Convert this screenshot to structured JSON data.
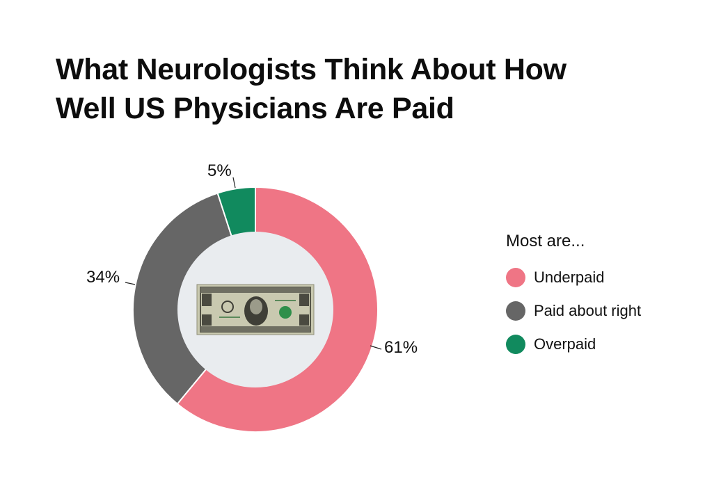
{
  "title": "What Neurologists Think About How Well US Physicians Are Paid",
  "title_lines": [
    "What Neurologists Think About How",
    "Well US Physicians Are Paid"
  ],
  "center_image": "one-dollar-bill",
  "legend": {
    "title": "Most are...",
    "items": [
      {
        "label": "Underpaid",
        "color": "#EF7585"
      },
      {
        "label": "Paid about right",
        "color": "#666666"
      },
      {
        "label": "Overpaid",
        "color": "#118A5E"
      }
    ]
  },
  "labels": {
    "underpaid": "61%",
    "paid_about_right": "34%",
    "overpaid": "5%"
  },
  "chart_data": {
    "type": "pie",
    "variant": "donut",
    "title": "What Neurologists Think About How Well US Physicians Are Paid",
    "legend_title": "Most are...",
    "legend_position": "right",
    "categories": [
      "Underpaid",
      "Paid about right",
      "Overpaid"
    ],
    "values": [
      61,
      34,
      5
    ],
    "unit": "%",
    "colors": [
      "#EF7585",
      "#666666",
      "#118A5E"
    ],
    "start_angle": "12 o'clock, clockwise"
  }
}
